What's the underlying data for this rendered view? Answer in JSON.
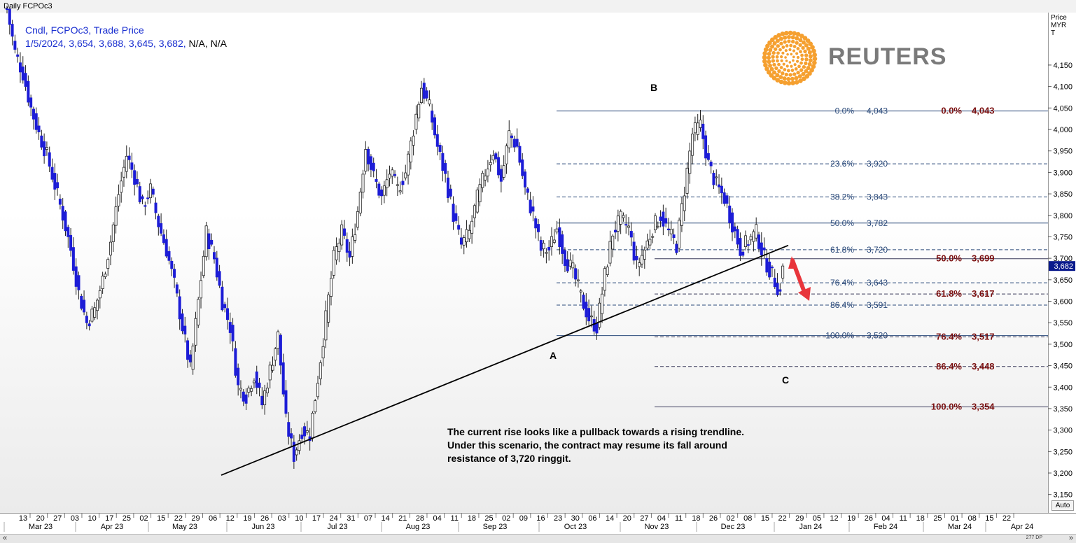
{
  "window_title": "Daily FCPOc3",
  "legend": {
    "line1": "Cndl, FCPOc3, Trade Price",
    "line2_values": "1/5/2024, 3,654, 3,688, 3,645, 3,682,",
    "line2_na": "N/A, N/A"
  },
  "axis_unit": [
    "Price",
    "MYR",
    "T"
  ],
  "last_price_label": "3,682",
  "auto_button": "Auto",
  "zoom_label": "277 DP",
  "nav_left": "«",
  "nav_right": "»",
  "logo_text": "REUTERS",
  "annotation": [
    "The current rise looks like a pullback towards a rising trendline.",
    "Under this scenario, the contract may resume its fall around",
    "resistance of 3,720 ringgit."
  ],
  "wave_labels": {
    "a": "A",
    "b": "B",
    "c": "C"
  },
  "colors": {
    "bull_candle": "#ffffff",
    "bear_candle": "#1c1cd6",
    "fib_retracement": "#2b4a7a",
    "fib_projection": "#7b1010",
    "arrow": "#e8353b",
    "trendline": "#000000"
  },
  "chart_data": {
    "type": "candlestick",
    "instrument": "FCPOc3",
    "ylim": [
      3140,
      4240
    ],
    "y_ticks": [
      3150,
      3200,
      3250,
      3300,
      3350,
      3400,
      3450,
      3500,
      3550,
      3600,
      3650,
      3700,
      3750,
      3800,
      3850,
      3900,
      3950,
      4000,
      4050,
      4100,
      4150
    ],
    "y_tick_labels": [
      "3,150",
      "3,200",
      "3,250",
      "3,300",
      "3,350",
      "3,400",
      "3,450",
      "3,500",
      "3,550",
      "3,600",
      "3,650",
      "3,700",
      "3,750",
      "3,800",
      "3,850",
      "3,900",
      "3,950",
      "4,000",
      "4,050",
      "4,100",
      "4,150"
    ],
    "x_tick_labels": [
      "13",
      "20",
      "27",
      "03",
      "10",
      "17",
      "25",
      "02",
      "15",
      "22",
      "29",
      "06",
      "12",
      "19",
      "26",
      "03",
      "10",
      "17",
      "24",
      "31",
      "07",
      "14",
      "21",
      "28",
      "04",
      "11",
      "18",
      "25",
      "02",
      "09",
      "16",
      "23",
      "30",
      "06",
      "14",
      "20",
      "27",
      "04",
      "11",
      "18",
      "26",
      "02",
      "08",
      "15",
      "22",
      "29",
      "05",
      "12",
      "19",
      "26",
      "04",
      "11",
      "18",
      "25",
      "01",
      "08",
      "15",
      "22"
    ],
    "month_labels": [
      "Mar 23",
      "Apr 23",
      "May 23",
      "Jun 23",
      "Jul 23",
      "Aug 23",
      "Sep 23",
      "Oct 23",
      "Nov 23",
      "Dec 23",
      "Jan 24",
      "Feb 24",
      "Mar 24",
      "Apr 24"
    ],
    "fib_retracement": [
      {
        "label": "0.0%",
        "value": "4,043",
        "price": 4043
      },
      {
        "label": "23.6%",
        "value": "3,920",
        "price": 3920
      },
      {
        "label": "38.2%",
        "value": "3,843",
        "price": 3843
      },
      {
        "label": "50.0%",
        "value": "3,782",
        "price": 3782
      },
      {
        "label": "61.8%",
        "value": "3,720",
        "price": 3720
      },
      {
        "label": "76.4%",
        "value": "3,643",
        "price": 3643
      },
      {
        "label": "86.4%",
        "value": "3,591",
        "price": 3591
      },
      {
        "label": "100.0%",
        "value": "3,520",
        "price": 3520
      }
    ],
    "fib_projection": [
      {
        "label": "0.0%",
        "value": "4,043",
        "price": 4043
      },
      {
        "label": "50.0%",
        "value": "3,699",
        "price": 3699
      },
      {
        "label": "61.8%",
        "value": "3,617",
        "price": 3617
      },
      {
        "label": "76.4%",
        "value": "3,517",
        "price": 3517
      },
      {
        "label": "86.4%",
        "value": "3,448",
        "price": 3448
      },
      {
        "label": "100.0%",
        "value": "3,354",
        "price": 3354
      }
    ],
    "trendline": {
      "from": {
        "date": "May 31, 2023",
        "price": 3195
      },
      "to": {
        "date": "Jan 8, 2024",
        "price": 3730
      }
    },
    "last_bar": {
      "date": "1/5/2024",
      "open": 3654,
      "high": 3688,
      "low": 3645,
      "close": 3682
    },
    "approx_path": [
      [
        0,
        4280
      ],
      [
        3,
        4180
      ],
      [
        6,
        4130
      ],
      [
        9,
        4050
      ],
      [
        12,
        3990
      ],
      [
        15,
        3940
      ],
      [
        18,
        3870
      ],
      [
        21,
        3800
      ],
      [
        24,
        3720
      ],
      [
        27,
        3620
      ],
      [
        30,
        3550
      ],
      [
        33,
        3580
      ],
      [
        36,
        3650
      ],
      [
        39,
        3740
      ],
      [
        42,
        3850
      ],
      [
        45,
        3940
      ],
      [
        48,
        3890
      ],
      [
        51,
        3820
      ],
      [
        54,
        3860
      ],
      [
        57,
        3780
      ],
      [
        60,
        3720
      ],
      [
        63,
        3640
      ],
      [
        66,
        3540
      ],
      [
        69,
        3440
      ],
      [
        72,
        3600
      ],
      [
        75,
        3760
      ],
      [
        78,
        3700
      ],
      [
        81,
        3600
      ],
      [
        84,
        3540
      ],
      [
        87,
        3400
      ],
      [
        90,
        3380
      ],
      [
        93,
        3430
      ],
      [
        96,
        3360
      ],
      [
        99,
        3440
      ],
      [
        102,
        3520
      ],
      [
        105,
        3320
      ],
      [
        108,
        3240
      ],
      [
        111,
        3300
      ],
      [
        114,
        3290
      ],
      [
        117,
        3420
      ],
      [
        120,
        3560
      ],
      [
        123,
        3700
      ],
      [
        126,
        3760
      ],
      [
        129,
        3700
      ],
      [
        132,
        3810
      ],
      [
        135,
        3960
      ],
      [
        138,
        3890
      ],
      [
        141,
        3840
      ],
      [
        144,
        3900
      ],
      [
        147,
        3860
      ],
      [
        150,
        3900
      ],
      [
        153,
        4000
      ],
      [
        156,
        4100
      ],
      [
        159,
        4050
      ],
      [
        162,
        3960
      ],
      [
        165,
        3890
      ],
      [
        168,
        3800
      ],
      [
        171,
        3730
      ],
      [
        174,
        3760
      ],
      [
        177,
        3840
      ],
      [
        180,
        3900
      ],
      [
        183,
        3950
      ],
      [
        186,
        3880
      ],
      [
        189,
        3990
      ],
      [
        192,
        3960
      ],
      [
        195,
        3860
      ],
      [
        198,
        3800
      ],
      [
        201,
        3720
      ],
      [
        204,
        3720
      ],
      [
        207,
        3770
      ],
      [
        210,
        3700
      ],
      [
        213,
        3670
      ],
      [
        216,
        3610
      ],
      [
        219,
        3560
      ],
      [
        222,
        3540
      ],
      [
        225,
        3660
      ],
      [
        228,
        3760
      ],
      [
        231,
        3790
      ],
      [
        234,
        3770
      ],
      [
        237,
        3680
      ],
      [
        240,
        3720
      ],
      [
        243,
        3770
      ],
      [
        246,
        3800
      ],
      [
        249,
        3760
      ],
      [
        252,
        3730
      ],
      [
        255,
        3860
      ],
      [
        258,
        3990
      ],
      [
        261,
        4010
      ],
      [
        264,
        3920
      ],
      [
        267,
        3870
      ],
      [
        270,
        3840
      ],
      [
        273,
        3780
      ],
      [
        276,
        3720
      ],
      [
        279,
        3740
      ],
      [
        282,
        3760
      ],
      [
        285,
        3700
      ],
      [
        288,
        3660
      ],
      [
        291,
        3620
      ],
      [
        292,
        3682
      ]
    ]
  }
}
